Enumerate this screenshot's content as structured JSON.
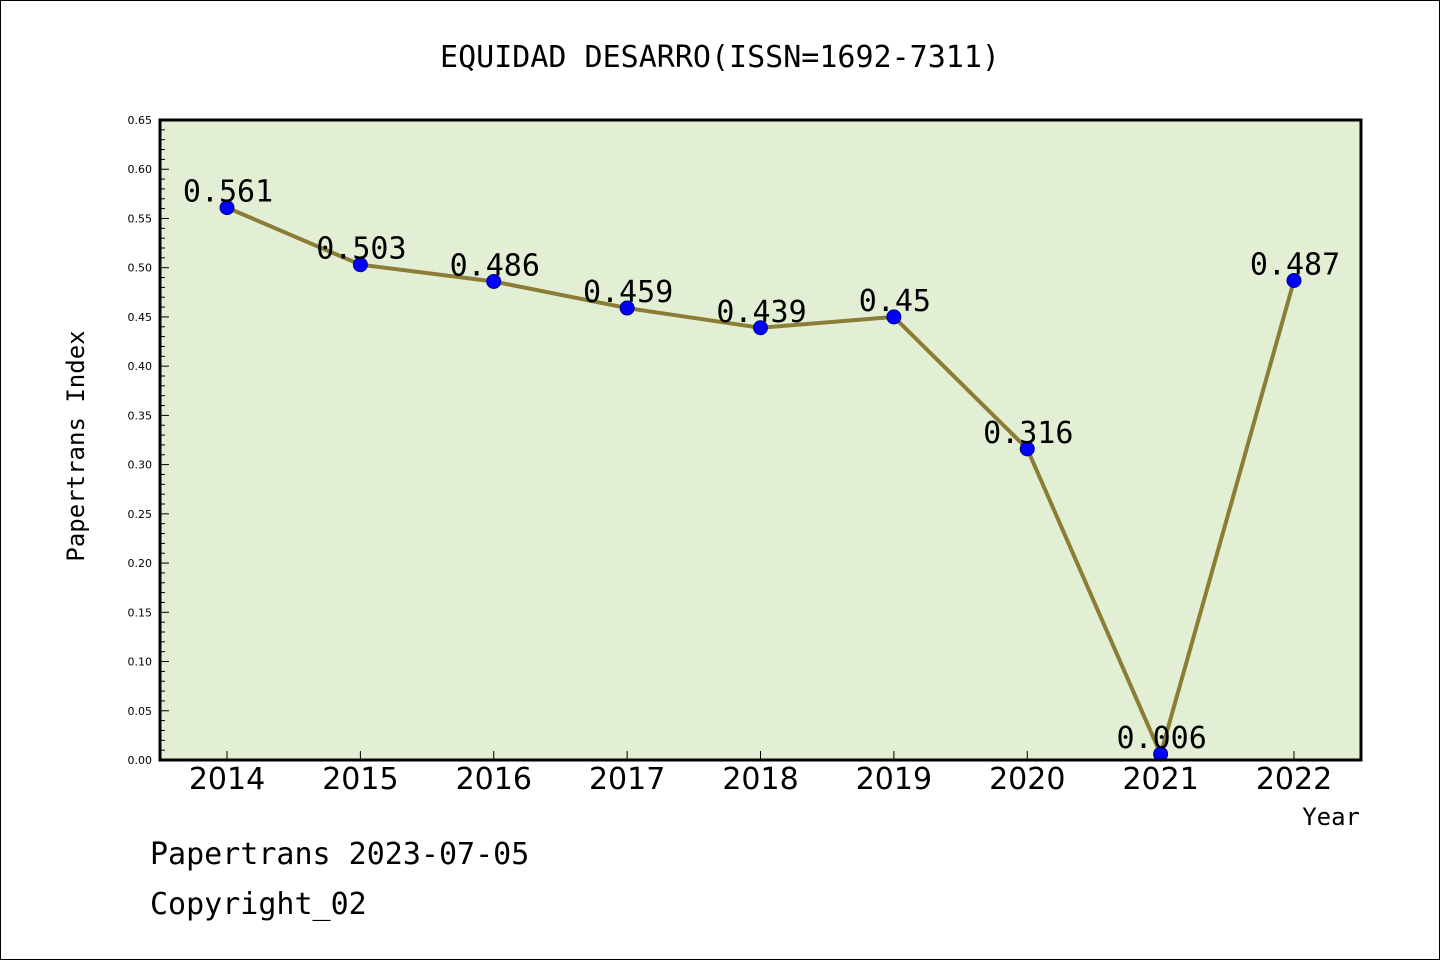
{
  "chart_data": {
    "type": "line",
    "title": "EQUIDAD DESARRO(ISSN=1692-7311)",
    "xlabel": "Year",
    "ylabel": "Papertrans Index",
    "categories": [
      "2014",
      "2015",
      "2016",
      "2017",
      "2018",
      "2019",
      "2020",
      "2021",
      "2022"
    ],
    "values": [
      0.561,
      0.503,
      0.486,
      0.459,
      0.439,
      0.45,
      0.316,
      0.006,
      0.487
    ],
    "data_labels": [
      "0.561",
      "0.503",
      "0.486",
      "0.459",
      "0.439",
      "0.45",
      "0.316",
      "0.006",
      "0.487"
    ],
    "ylim": [
      0,
      0.65
    ],
    "y_ticks": [
      "0.00",
      "0.05",
      "0.10",
      "0.15",
      "0.20",
      "0.25",
      "0.30",
      "0.35",
      "0.40",
      "0.45",
      "0.50",
      "0.55",
      "0.60",
      "0.65"
    ],
    "grid": false,
    "colors": {
      "plot_background": "#e2efd5",
      "line": "#8b7d35",
      "marker": "#0000ff"
    }
  },
  "footer": {
    "line1": "Papertrans 2023-07-05",
    "line2": "Copyright_02"
  }
}
